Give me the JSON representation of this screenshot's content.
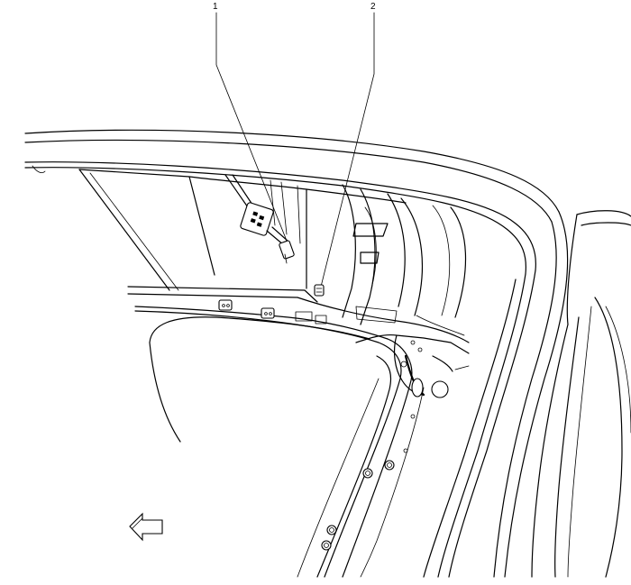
{
  "callouts": [
    {
      "id": "1",
      "label": "1"
    },
    {
      "id": "2",
      "label": "2"
    }
  ],
  "direction_arrow": {
    "icon": "left-arrow-icon",
    "pointing": "left"
  }
}
